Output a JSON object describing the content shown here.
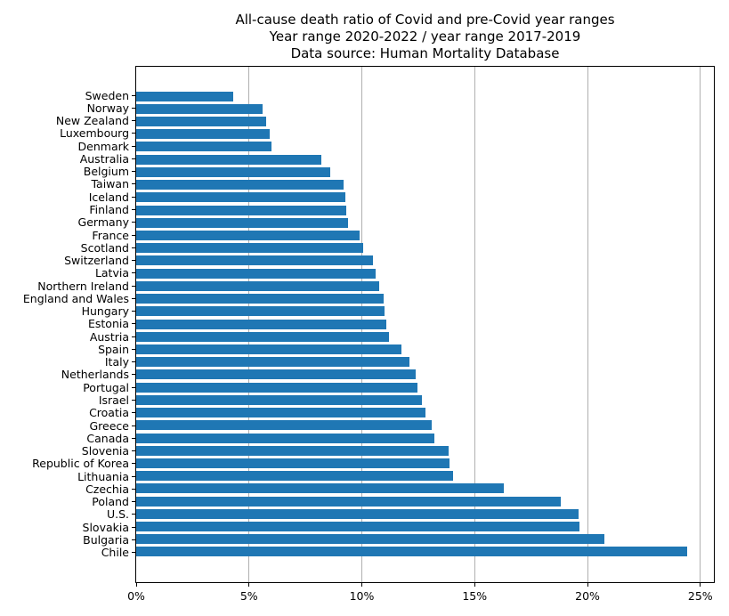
{
  "figure": {
    "title_line1": "All-cause death ratio of Covid and pre-Covid year ranges",
    "title_line2": "Year range 2020-2022 / year range 2017-2019",
    "title_line3": "Data source: Human Mortality Database"
  },
  "chart_data": {
    "type": "bar",
    "orientation": "horizontal",
    "title": "All-cause death ratio of Covid and pre-Covid year ranges",
    "subtitle": "Year range 2020-2022 / year range 2017-2019",
    "source_note": "Data source: Human Mortality Database",
    "categories": [
      "Sweden",
      "Norway",
      "New Zealand",
      "Luxembourg",
      "Denmark",
      "Australia",
      "Belgium",
      "Taiwan",
      "Iceland",
      "Finland",
      "Germany",
      "France",
      "Scotland",
      "Switzerland",
      "Latvia",
      "Northern Ireland",
      "England and Wales",
      "Hungary",
      "Estonia",
      "Austria",
      "Spain",
      "Italy",
      "Netherlands",
      "Portugal",
      "Israel",
      "Croatia",
      "Greece",
      "Canada",
      "Slovenia",
      "Republic of Korea",
      "Lithuania",
      "Czechia",
      "Poland",
      "U.S.",
      "Slovakia",
      "Bulgaria",
      "Chile"
    ],
    "values": [
      4.3,
      5.6,
      5.75,
      5.9,
      6.0,
      8.2,
      8.6,
      9.2,
      9.25,
      9.3,
      9.4,
      9.9,
      10.05,
      10.5,
      10.6,
      10.75,
      10.95,
      11.0,
      11.1,
      11.2,
      11.75,
      12.1,
      12.4,
      12.45,
      12.65,
      12.8,
      13.1,
      13.2,
      13.85,
      13.9,
      14.05,
      16.3,
      18.8,
      19.6,
      19.65,
      20.75,
      24.4
    ],
    "value_unit": "percent",
    "xlabel": "",
    "ylabel": "",
    "xlim": [
      0,
      25.6
    ],
    "xtick_values": [
      0,
      5,
      10,
      15,
      20,
      25
    ],
    "xtick_labels": [
      "0%",
      "5%",
      "10%",
      "15%",
      "20%",
      "25%"
    ],
    "grid": "vertical",
    "legend": "none",
    "bar_color": "#1f77b4",
    "grid_color": "#b0b0b0",
    "axis_color": "#000000",
    "background_color": "#ffffff"
  }
}
